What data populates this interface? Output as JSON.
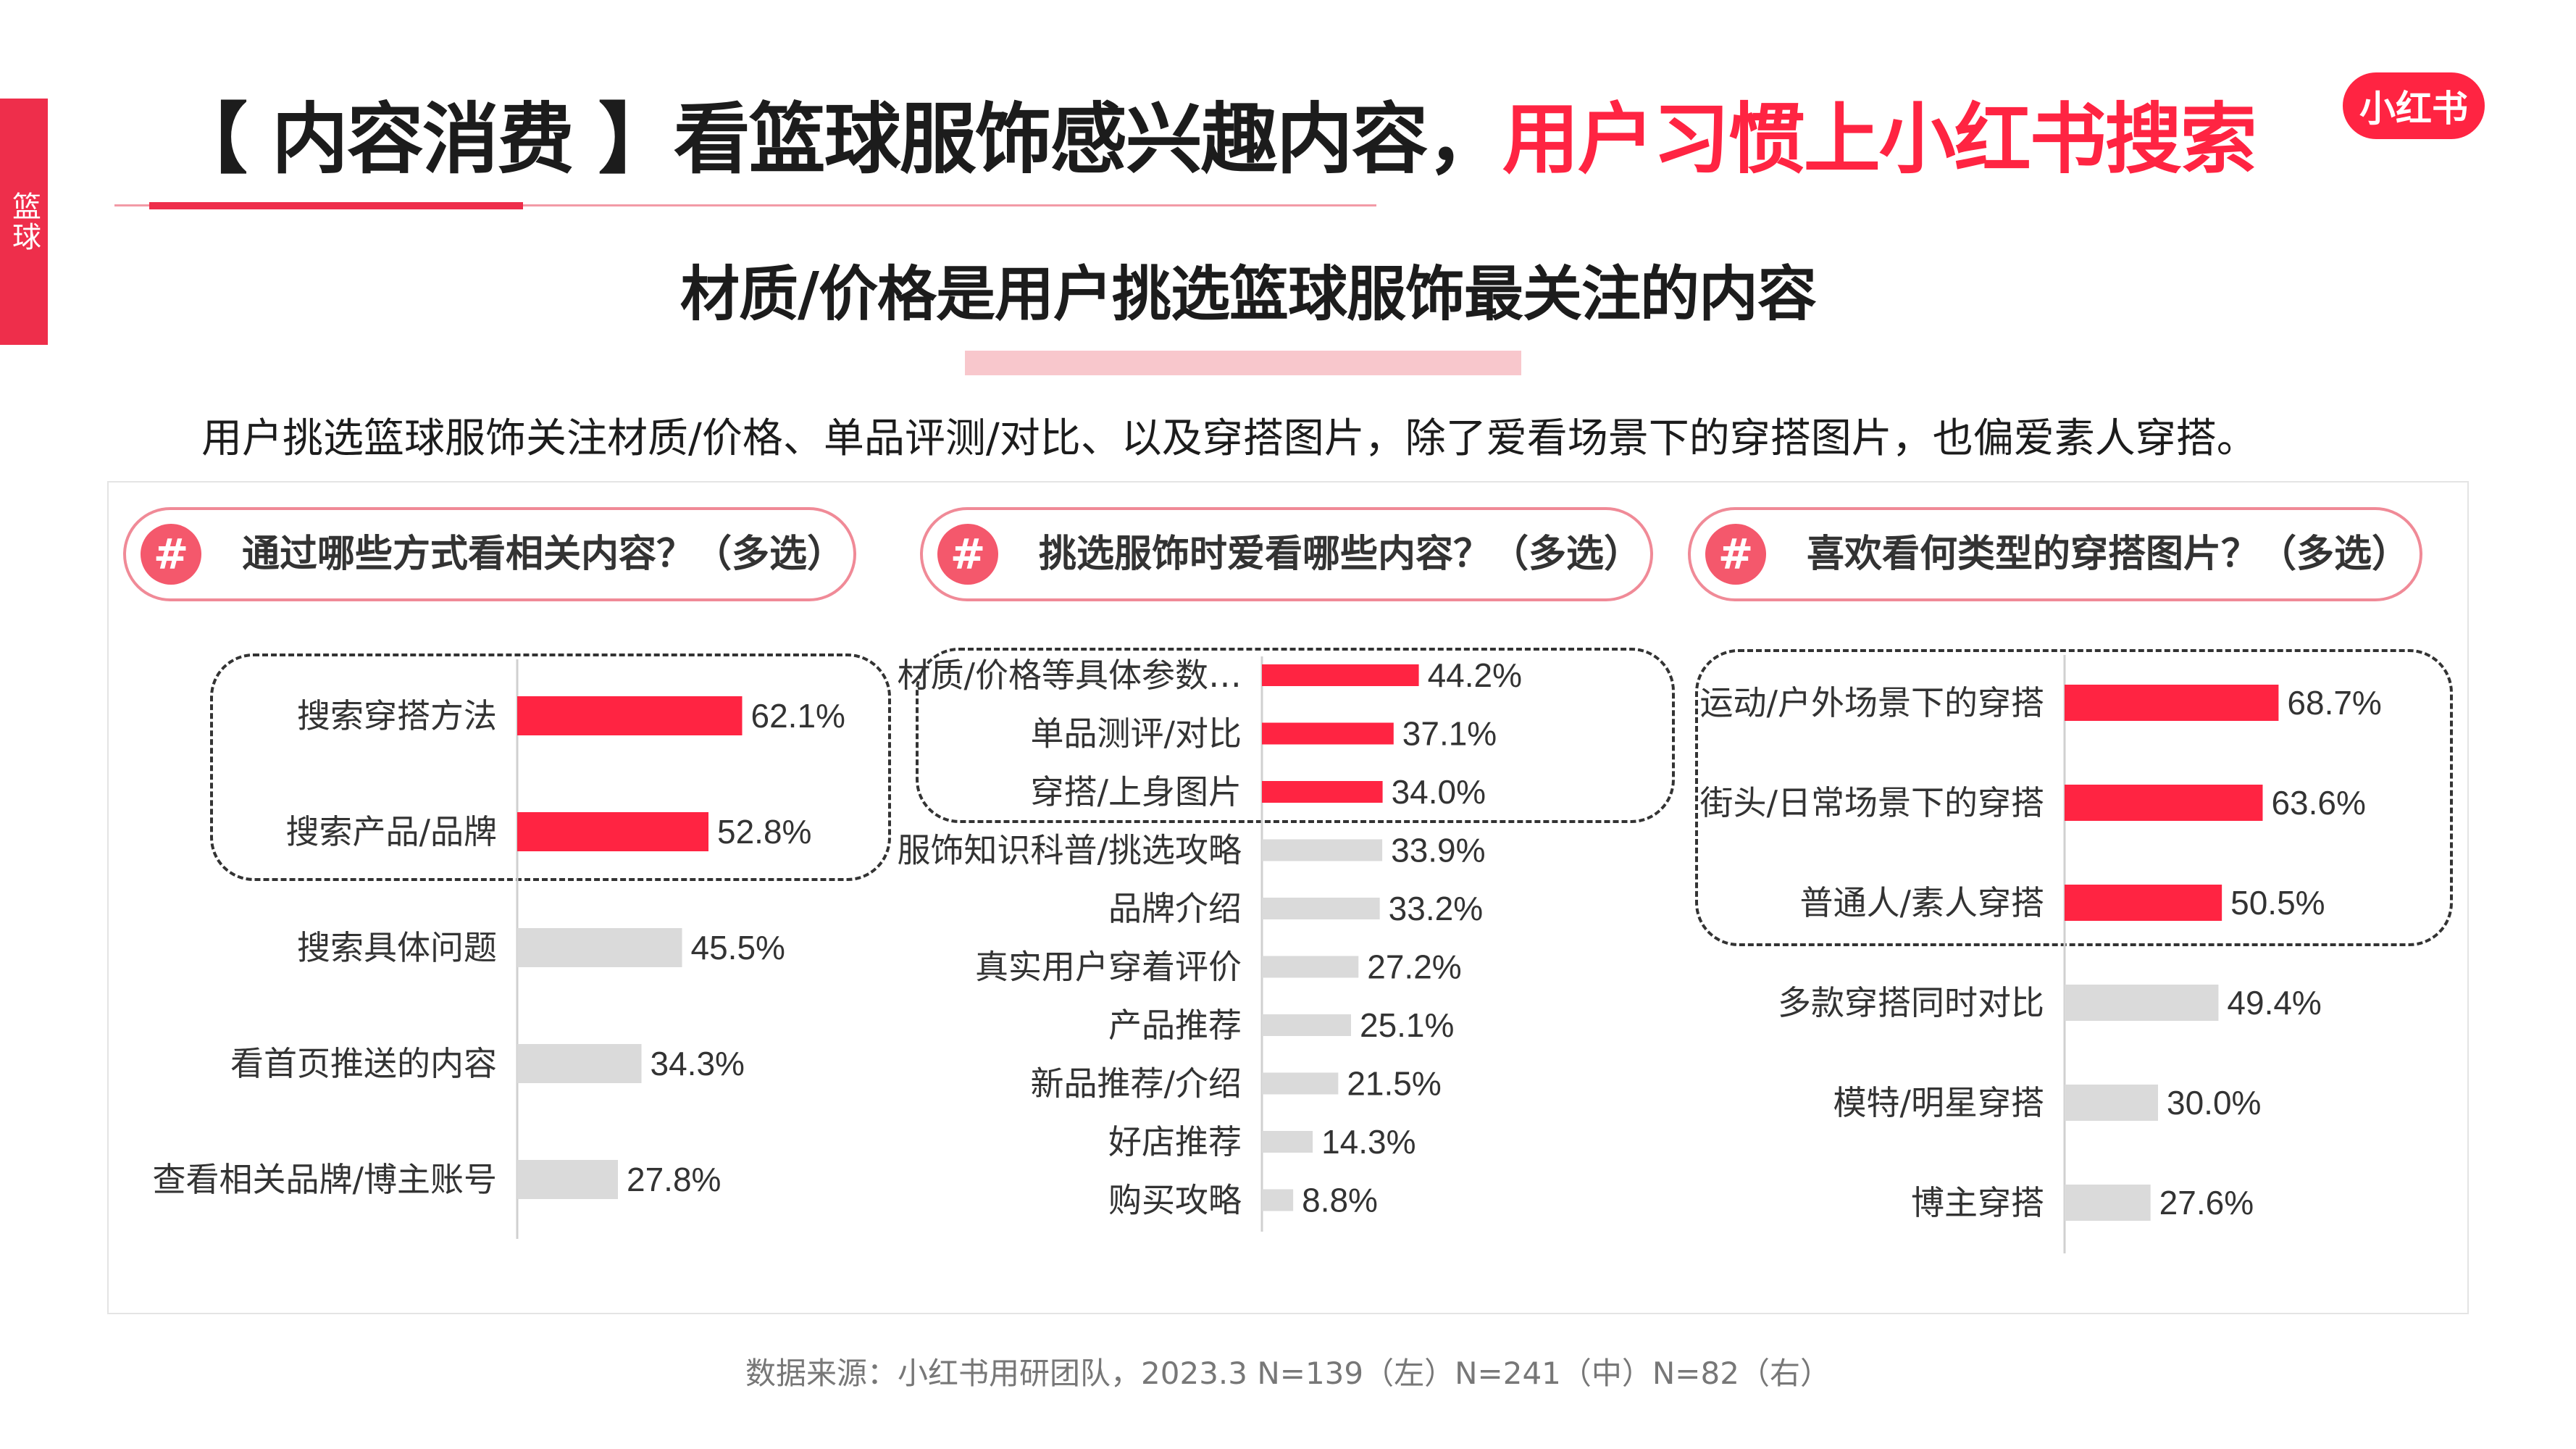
{
  "side_tab": "篮球",
  "header": {
    "title_prefix": "【 内容消费 】看篮球服饰感兴趣内容，",
    "title_highlight": "用户习惯上小红书搜索",
    "logo": "小红书"
  },
  "subtitle": "材质/价格是用户挑选篮球服饰最关注的内容",
  "description": "用户挑选篮球服饰关注材质/价格、单品评测/对比、以及穿搭图片，除了爱看场景下的穿搭图片，也偏爱素人穿搭。",
  "colors": {
    "accent": "#ff2442",
    "bar_gray": "#dadada"
  },
  "chart_data": [
    {
      "type": "bar",
      "orientation": "horizontal",
      "title": "通过哪些方式看相关内容？（多选）",
      "categories": [
        "搜索穿搭方法",
        "搜索产品/品牌",
        "搜索具体问题",
        "看首页推送的内容",
        "查看相关品牌/博主账号"
      ],
      "values": [
        62.1,
        52.8,
        45.5,
        34.3,
        27.8
      ],
      "labels": [
        "62.1%",
        "52.8%",
        "45.5%",
        "34.3%",
        "27.8%"
      ],
      "highlighted": [
        true,
        true,
        false,
        false,
        false
      ]
    },
    {
      "type": "bar",
      "orientation": "horizontal",
      "title": "挑选服饰时爱看哪些内容？（多选）",
      "categories": [
        "材质/价格等具体参数…",
        "单品测评/对比",
        "穿搭/上身图片",
        "服饰知识科普/挑选攻略",
        "品牌介绍",
        "真实用户穿着评价",
        "产品推荐",
        "新品推荐/介绍",
        "好店推荐",
        "购买攻略"
      ],
      "values": [
        44.2,
        37.1,
        34.0,
        33.9,
        33.2,
        27.2,
        25.1,
        21.5,
        14.3,
        8.8
      ],
      "labels": [
        "44.2%",
        "37.1%",
        "34.0%",
        "33.9%",
        "33.2%",
        "27.2%",
        "25.1%",
        "21.5%",
        "14.3%",
        "8.8%"
      ],
      "highlighted": [
        true,
        true,
        true,
        false,
        false,
        false,
        false,
        false,
        false,
        false
      ]
    },
    {
      "type": "bar",
      "orientation": "horizontal",
      "title": "喜欢看何类型的穿搭图片？（多选）",
      "categories": [
        "运动/户外场景下的穿搭",
        "街头/日常场景下的穿搭",
        "普通人/素人穿搭",
        "多款穿搭同时对比",
        "模特/明星穿搭",
        "博主穿搭"
      ],
      "values": [
        68.7,
        63.6,
        50.5,
        49.4,
        30.0,
        27.6
      ],
      "labels": [
        "68.7%",
        "63.6%",
        "50.5%",
        "49.4%",
        "30.0%",
        "27.6%"
      ],
      "highlighted": [
        true,
        true,
        true,
        false,
        false,
        false
      ]
    }
  ],
  "footer": "数据来源：小红书用研团队，2023.3 N=139（左）N=241（中）N=82（右）"
}
